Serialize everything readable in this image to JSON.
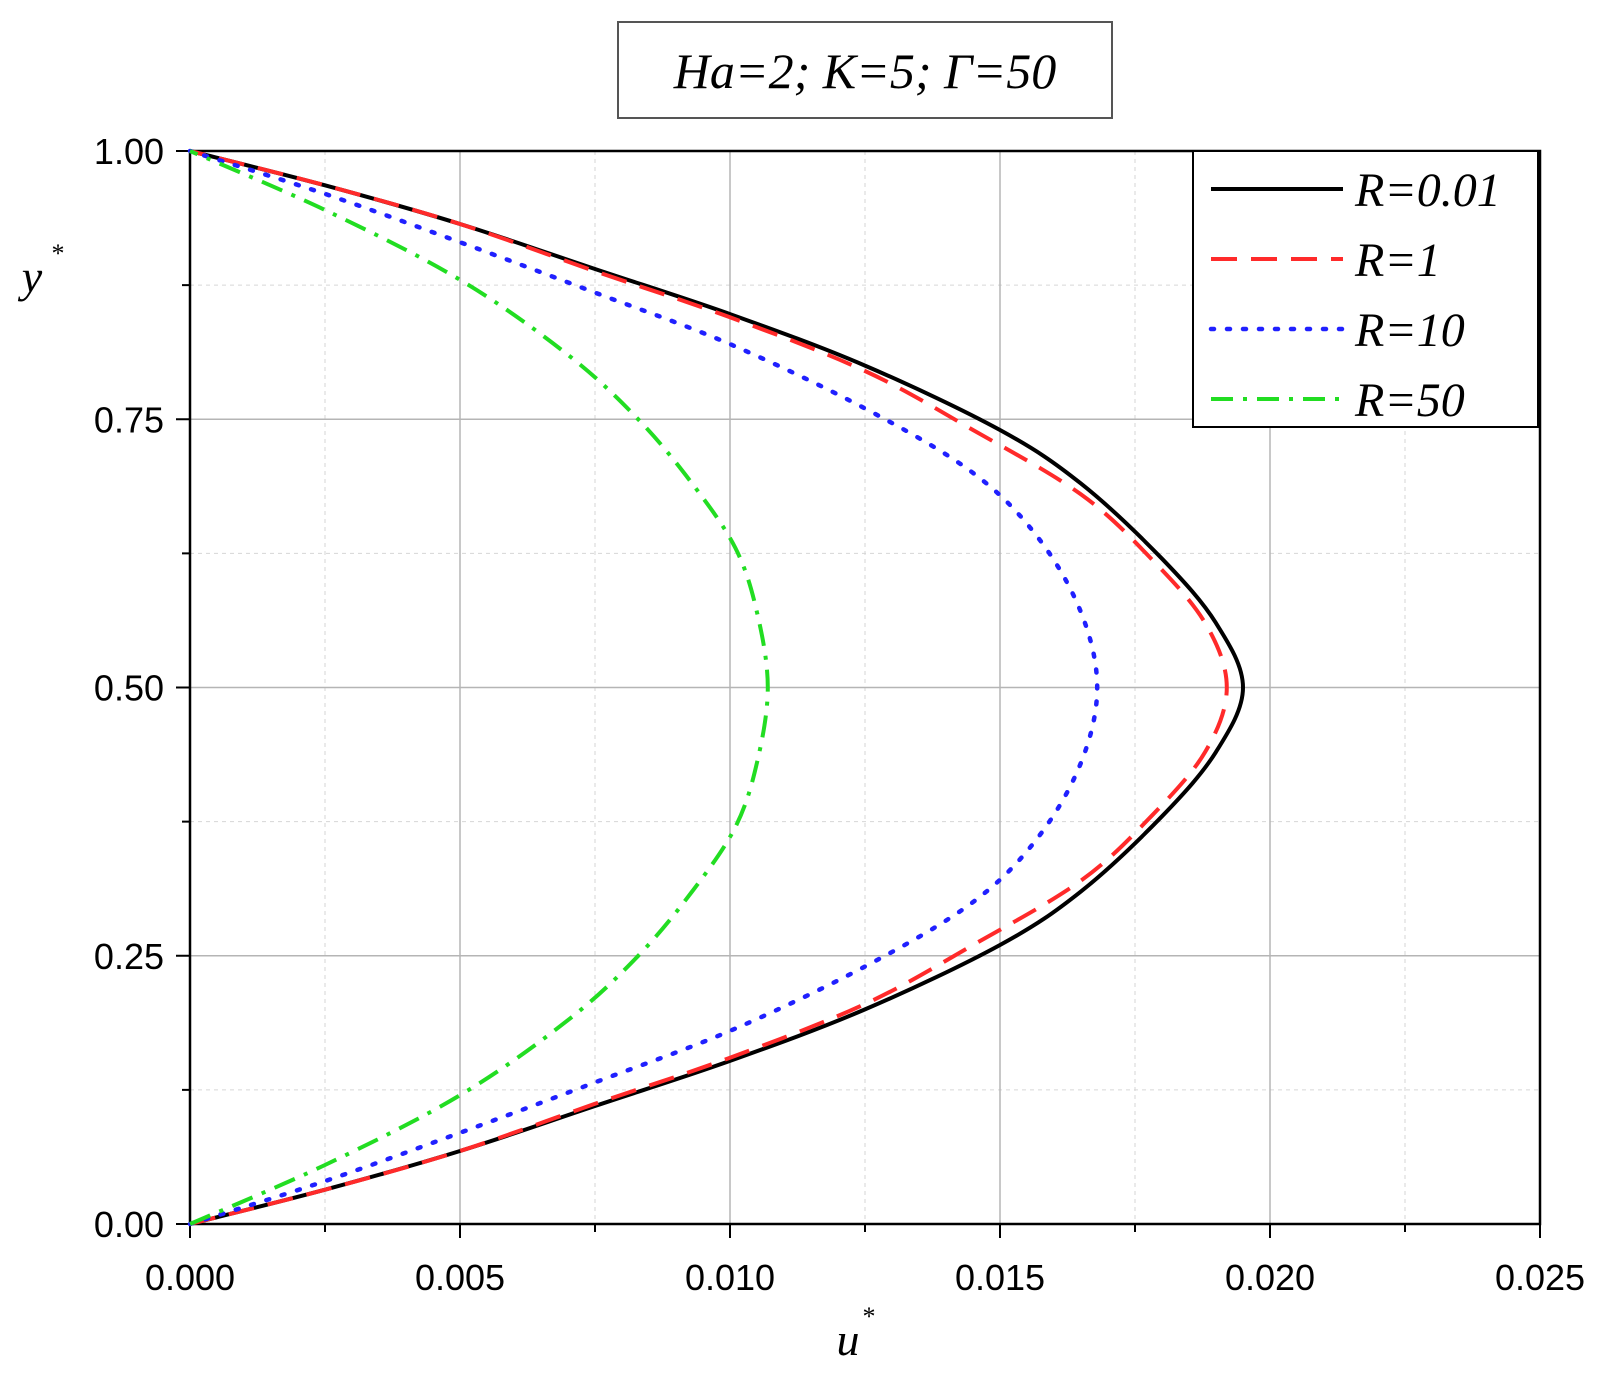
{
  "chart_data": {
    "type": "line",
    "title": "Ha=2; K=5; Γ=50",
    "xlabel": "u",
    "xlabel_sup": "*",
    "ylabel": "y",
    "ylabel_sup": "*",
    "xlim": [
      0,
      0.025
    ],
    "ylim": [
      0,
      1
    ],
    "xticks": [
      0.0,
      0.005,
      0.01,
      0.015,
      0.02,
      0.025
    ],
    "xtick_labels": [
      "0.000",
      "0.005",
      "0.010",
      "0.015",
      "0.020",
      "0.025"
    ],
    "yticks": [
      0.0,
      0.25,
      0.5,
      0.75,
      1.0
    ],
    "ytick_labels": [
      "0.00",
      "0.25",
      "0.50",
      "0.75",
      "1.00"
    ],
    "grid": true,
    "legend_position": "top-right",
    "series": [
      {
        "name": "R=0.01",
        "color": "#000000",
        "style": "solid",
        "points": [
          [
            0,
            0
          ],
          [
            0.0025,
            0.032
          ],
          [
            0.005,
            0.068
          ],
          [
            0.0075,
            0.11
          ],
          [
            0.01,
            0.152
          ],
          [
            0.0125,
            0.2
          ],
          [
            0.015,
            0.26
          ],
          [
            0.0165,
            0.31
          ],
          [
            0.018,
            0.38
          ],
          [
            0.019,
            0.44
          ],
          [
            0.0195,
            0.5
          ],
          [
            0.019,
            0.56
          ],
          [
            0.018,
            0.62
          ],
          [
            0.0165,
            0.69
          ],
          [
            0.015,
            0.74
          ],
          [
            0.0125,
            0.8
          ],
          [
            0.01,
            0.848
          ],
          [
            0.0075,
            0.89
          ],
          [
            0.005,
            0.932
          ],
          [
            0.0025,
            0.968
          ],
          [
            0,
            1
          ]
        ]
      },
      {
        "name": "R=1",
        "color": "#ff2a2a",
        "style": "dashed",
        "points": [
          [
            0,
            0
          ],
          [
            0.0025,
            0.032
          ],
          [
            0.005,
            0.068
          ],
          [
            0.0075,
            0.112
          ],
          [
            0.01,
            0.155
          ],
          [
            0.0125,
            0.205
          ],
          [
            0.0145,
            0.26
          ],
          [
            0.0165,
            0.32
          ],
          [
            0.0178,
            0.38
          ],
          [
            0.0188,
            0.44
          ],
          [
            0.0192,
            0.5
          ],
          [
            0.0188,
            0.56
          ],
          [
            0.0178,
            0.62
          ],
          [
            0.0165,
            0.68
          ],
          [
            0.0145,
            0.74
          ],
          [
            0.0125,
            0.795
          ],
          [
            0.01,
            0.845
          ],
          [
            0.0075,
            0.888
          ],
          [
            0.005,
            0.932
          ],
          [
            0.0025,
            0.968
          ],
          [
            0,
            1
          ]
        ]
      },
      {
        "name": "R=10",
        "color": "#2020ff",
        "style": "dotted",
        "points": [
          [
            0,
            0
          ],
          [
            0.0025,
            0.04
          ],
          [
            0.005,
            0.085
          ],
          [
            0.0075,
            0.132
          ],
          [
            0.01,
            0.18
          ],
          [
            0.0125,
            0.24
          ],
          [
            0.0145,
            0.3
          ],
          [
            0.0157,
            0.36
          ],
          [
            0.0165,
            0.43
          ],
          [
            0.0168,
            0.5
          ],
          [
            0.0165,
            0.57
          ],
          [
            0.0157,
            0.64
          ],
          [
            0.0145,
            0.7
          ],
          [
            0.0125,
            0.76
          ],
          [
            0.01,
            0.82
          ],
          [
            0.0075,
            0.868
          ],
          [
            0.005,
            0.915
          ],
          [
            0.0025,
            0.96
          ],
          [
            0,
            1
          ]
        ]
      },
      {
        "name": "R=50",
        "color": "#22dd22",
        "style": "dashdot",
        "points": [
          [
            0,
            0
          ],
          [
            0.0025,
            0.055
          ],
          [
            0.005,
            0.12
          ],
          [
            0.007,
            0.19
          ],
          [
            0.0083,
            0.25
          ],
          [
            0.0093,
            0.31
          ],
          [
            0.0101,
            0.37
          ],
          [
            0.0105,
            0.43
          ],
          [
            0.0107,
            0.5
          ],
          [
            0.0105,
            0.57
          ],
          [
            0.0101,
            0.63
          ],
          [
            0.0093,
            0.69
          ],
          [
            0.0083,
            0.75
          ],
          [
            0.007,
            0.81
          ],
          [
            0.005,
            0.88
          ],
          [
            0.0025,
            0.945
          ],
          [
            0,
            1
          ]
        ]
      }
    ]
  }
}
